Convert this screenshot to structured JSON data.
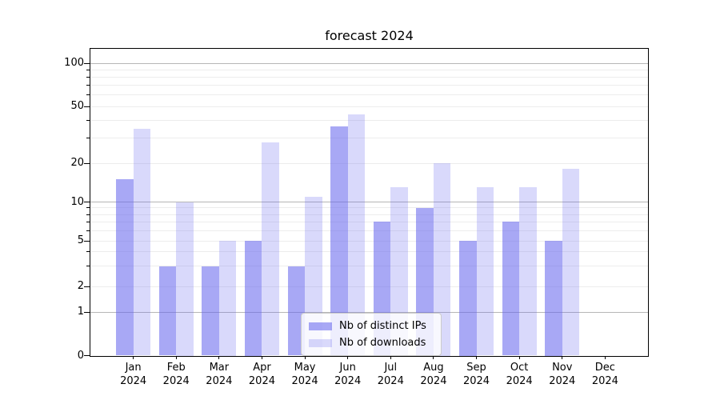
{
  "title": "forecast 2024",
  "legend": {
    "items": [
      {
        "label": "Nb of distinct IPs"
      },
      {
        "label": "Nb of downloads"
      }
    ]
  },
  "chart_data": {
    "type": "bar",
    "title": "forecast 2024",
    "categories": [
      "Jan 2024",
      "Feb 2024",
      "Mar 2024",
      "Apr 2024",
      "May 2024",
      "Jun 2024",
      "Jul 2024",
      "Aug 2024",
      "Sep 2024",
      "Oct 2024",
      "Nov 2024",
      "Dec 2024"
    ],
    "series": [
      {
        "name": "Nb of distinct IPs",
        "color": "rgba(102,102,238,0.57)",
        "values": [
          15,
          3,
          3,
          5,
          3,
          36,
          7,
          9,
          5,
          7,
          5,
          0
        ]
      },
      {
        "name": "Nb of downloads",
        "color": "rgba(102,102,238,0.25)",
        "values": [
          35,
          10,
          5,
          28,
          11,
          44,
          13,
          20,
          13,
          13,
          18,
          0
        ]
      }
    ],
    "xlabel": "",
    "ylabel": "",
    "yscale": "symlog",
    "ylim": [
      0,
      140
    ],
    "ytick_values": [
      0,
      1,
      2,
      5,
      10,
      20,
      50,
      100
    ],
    "ytick_labels": [
      "0",
      "1",
      "2",
      "5",
      "10",
      "20",
      "50",
      "100"
    ],
    "major_grid_values": [
      1,
      10,
      100
    ],
    "minor_grid_values": [
      2,
      3,
      4,
      5,
      6,
      7,
      8,
      9,
      20,
      30,
      40,
      50,
      60,
      70,
      80,
      90
    ],
    "grid": true,
    "legend_position": "inside-bottom-center",
    "colors": {
      "bar_distinct_ips": "rgba(102,102,238,0.57)",
      "bar_downloads": "rgba(102,102,238,0.25)",
      "grid_minor": "#ececec",
      "grid_major": "#b6b6b6",
      "spine": "#000000",
      "text": "#000000",
      "legend_border": "#cbcbcb"
    }
  }
}
